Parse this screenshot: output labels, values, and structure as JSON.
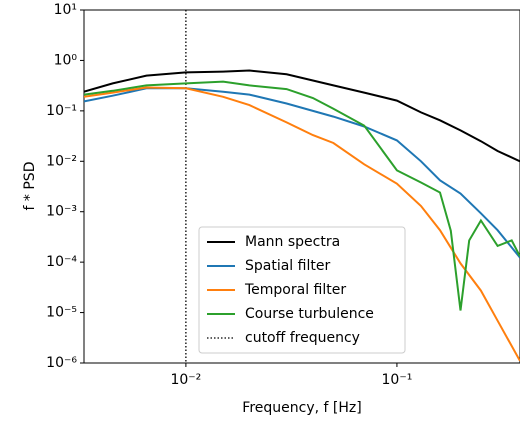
{
  "chart_data": {
    "type": "line",
    "xlabel": "Frequency, f [Hz]",
    "ylabel": "f * PSD",
    "log_x": true,
    "log_y": true,
    "legend": "lower center",
    "xlim": [
      0.00329,
      0.383
    ],
    "ylim": [
      1e-06,
      10
    ],
    "xticks": [
      {
        "value": 0.01,
        "label": "10⁻²"
      },
      {
        "value": 0.1,
        "label": "10⁻¹"
      }
    ],
    "yticks": [
      {
        "value": 1e-06,
        "label": "10⁻⁶"
      },
      {
        "value": 1e-05,
        "label": "10⁻⁵"
      },
      {
        "value": 0.0001,
        "label": "10⁻⁴"
      },
      {
        "value": 0.001,
        "label": "10⁻³"
      },
      {
        "value": 0.01,
        "label": "10⁻²"
      },
      {
        "value": 0.1,
        "label": "10⁻¹"
      },
      {
        "value": 1,
        "label": "10⁰"
      },
      {
        "value": 10,
        "label": "10¹"
      }
    ],
    "series": [
      {
        "name": "Mann spectra",
        "color": "#000000",
        "x": [
          0.00329,
          0.0045,
          0.0065,
          0.01,
          0.015,
          0.02,
          0.03,
          0.04,
          0.05,
          0.07,
          0.1,
          0.13,
          0.16,
          0.2,
          0.25,
          0.3,
          0.383
        ],
        "values": [
          0.24,
          0.35,
          0.5,
          0.58,
          0.6,
          0.63,
          0.53,
          0.4,
          0.32,
          0.23,
          0.16,
          0.093,
          0.065,
          0.041,
          0.025,
          0.016,
          0.01
        ]
      },
      {
        "name": "Spatial filter",
        "color": "#1f77b4",
        "x": [
          0.00329,
          0.0045,
          0.0065,
          0.01,
          0.015,
          0.02,
          0.03,
          0.04,
          0.05,
          0.07,
          0.1,
          0.13,
          0.16,
          0.2,
          0.25,
          0.3,
          0.383
        ],
        "values": [
          0.154,
          0.2,
          0.28,
          0.28,
          0.24,
          0.21,
          0.14,
          0.1,
          0.077,
          0.049,
          0.026,
          0.01,
          0.0042,
          0.0023,
          0.00093,
          0.00043,
          0.000123
        ]
      },
      {
        "name": "Temporal filter",
        "color": "#ff7f0e",
        "x": [
          0.00329,
          0.0045,
          0.0065,
          0.01,
          0.015,
          0.02,
          0.03,
          0.04,
          0.05,
          0.07,
          0.1,
          0.13,
          0.16,
          0.2,
          0.25,
          0.3,
          0.383
        ],
        "values": [
          0.19,
          0.23,
          0.29,
          0.28,
          0.19,
          0.13,
          0.059,
          0.033,
          0.023,
          0.0087,
          0.0036,
          0.0013,
          0.00043,
          9.45e-05,
          2.73e-05,
          6.9e-06,
          1.1e-06
        ]
      },
      {
        "name": "Course turbulence",
        "color": "#2ca02c",
        "x": [
          0.00329,
          0.0045,
          0.0065,
          0.01,
          0.015,
          0.02,
          0.03,
          0.04,
          0.05,
          0.07,
          0.1,
          0.13,
          0.16,
          0.18,
          0.2,
          0.22,
          0.25,
          0.3,
          0.35,
          0.383
        ],
        "values": [
          0.21,
          0.25,
          0.32,
          0.35,
          0.38,
          0.32,
          0.27,
          0.18,
          0.11,
          0.051,
          0.0066,
          0.0038,
          0.0024,
          0.00042,
          1.1e-05,
          0.00027,
          0.00067,
          0.00021,
          0.00027,
          0.00013
        ]
      }
    ],
    "cutoff": {
      "name": "cutoff frequency",
      "x": 0.01,
      "color": "#000000"
    }
  }
}
